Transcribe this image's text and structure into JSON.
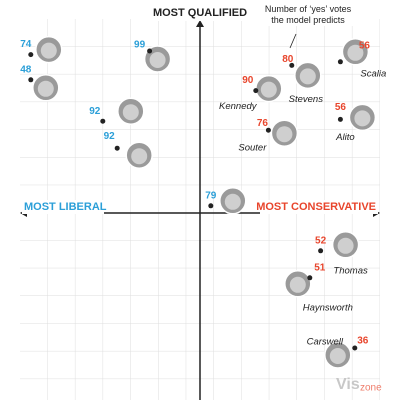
{
  "chart_data": {
    "type": "scatter",
    "y_top_label": "MOST QUALIFIED",
    "x_left_label": "MOST LIBERAL",
    "x_right_label": "MOST CONSERVATIVE",
    "annotation": "Number of ‘yes’ votes the model predicts",
    "watermark": [
      "Vis",
      "zone"
    ],
    "xlim": [
      -1,
      1
    ],
    "ylim": [
      -1,
      1
    ],
    "x": [
      -0.94,
      -0.94,
      -0.28,
      -0.54,
      -0.46,
      0.06,
      0.78,
      0.51,
      0.31,
      0.78,
      0.38,
      0.67,
      0.61,
      0.86
    ],
    "y": [
      0.88,
      0.74,
      0.9,
      0.51,
      0.36,
      0.04,
      0.84,
      0.82,
      0.68,
      0.52,
      0.46,
      -0.21,
      -0.36,
      -0.75
    ],
    "values": [
      74,
      48,
      99,
      92,
      92,
      79,
      56,
      80,
      90,
      56,
      76,
      52,
      51,
      36
    ],
    "names": [
      null,
      null,
      null,
      null,
      null,
      null,
      "Scalia",
      "Stevens",
      "Kennedy",
      "Alito",
      "Souter",
      "Thomas",
      "Haynsworth",
      "Carswell"
    ],
    "colors": [
      "#2b9fd8",
      "#2b9fd8",
      "#2b9fd8",
      "#2b9fd8",
      "#2b9fd8",
      "#2b9fd8",
      "#e8452c",
      "#e8452c",
      "#e8452c",
      "#e8452c",
      "#e8452c",
      "#e8452c",
      "#e8452c",
      "#e8452c"
    ]
  }
}
